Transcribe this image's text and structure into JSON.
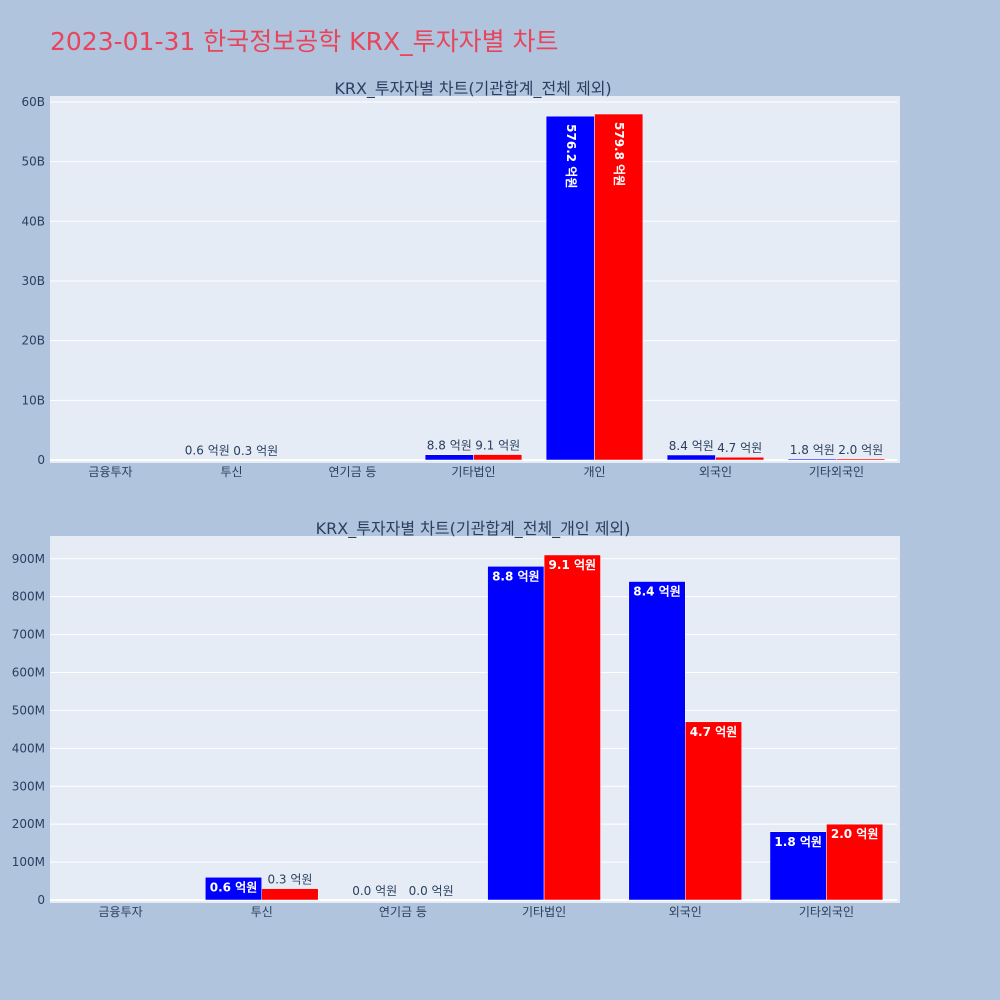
{
  "page": {
    "title": "2023-01-31 한국정보공학 KRX_투자자별 차트"
  },
  "colors": {
    "series1": "#0000ff",
    "series2": "#ff0000",
    "plot_bg": "#e5ecf6",
    "page_bg": "#b0c4de",
    "title": "#e8455b"
  },
  "chart_data": [
    {
      "type": "bar",
      "title": "KRX_투자자별 차트(기관합계_전체 제외)",
      "categories": [
        "금융투자",
        "투신",
        "연기금 등",
        "기타법인",
        "개인",
        "외국인",
        "기타외국인"
      ],
      "series": [
        {
          "values": [
            0,
            60000000,
            0,
            880000000,
            57620000000,
            840000000,
            180000000
          ],
          "labels": [
            "",
            "0.6 억원",
            "",
            "8.8 억원",
            "576.2 억원",
            "8.4 억원",
            "1.8 억원"
          ]
        },
        {
          "values": [
            0,
            30000000,
            0,
            910000000,
            57980000000,
            470000000,
            200000000
          ],
          "labels": [
            "",
            "0.3 억원",
            "",
            "9.1 억원",
            "579.8 억원",
            "4.7 억원",
            "2.0 억원"
          ]
        }
      ],
      "ylim": [
        0,
        61000000000
      ],
      "yticks": [
        0,
        10000000000,
        20000000000,
        30000000000,
        40000000000,
        50000000000,
        60000000000
      ],
      "yticklabels": [
        "0",
        "10B",
        "20B",
        "30B",
        "40B",
        "50B",
        "60B"
      ],
      "grid": true
    },
    {
      "type": "bar",
      "title": "KRX_투자자별 차트(기관합계_전체_개인 제외)",
      "categories": [
        "금융투자",
        "투신",
        "연기금 등",
        "기타법인",
        "외국인",
        "기타외국인"
      ],
      "series": [
        {
          "values": [
            0,
            60000000,
            0,
            880000000,
            840000000,
            180000000
          ],
          "labels": [
            "",
            "0.6 억원",
            "0.0 억원",
            "8.8 억원",
            "8.4 억원",
            "1.8 억원"
          ]
        },
        {
          "values": [
            0,
            30000000,
            0,
            910000000,
            470000000,
            200000000
          ],
          "labels": [
            "",
            "0.3 억원",
            "0.0 억원",
            "9.1 억원",
            "4.7 억원",
            "2.0 억원"
          ]
        }
      ],
      "ylim": [
        0,
        960000000
      ],
      "yticks": [
        0,
        100000000,
        200000000,
        300000000,
        400000000,
        500000000,
        600000000,
        700000000,
        800000000,
        900000000
      ],
      "yticklabels": [
        "0",
        "100M",
        "200M",
        "300M",
        "400M",
        "500M",
        "600M",
        "700M",
        "800M",
        "900M"
      ],
      "grid": true
    }
  ]
}
